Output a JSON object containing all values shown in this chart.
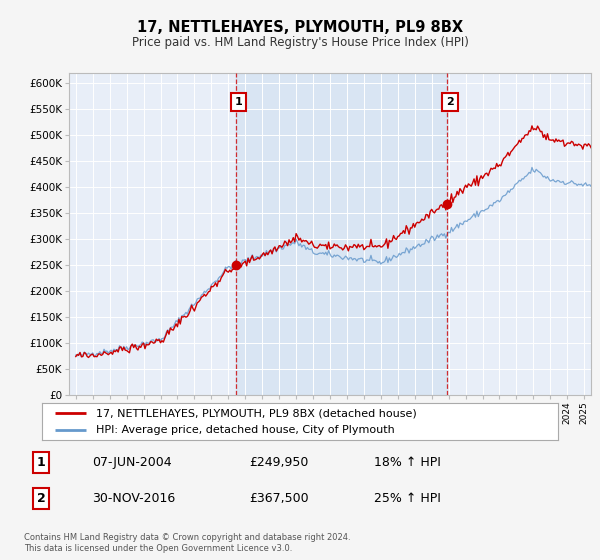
{
  "title": "17, NETTLEHAYES, PLYMOUTH, PL9 8BX",
  "subtitle": "Price paid vs. HM Land Registry's House Price Index (HPI)",
  "background_color": "#f5f5f5",
  "plot_bg_color": "#e8eef8",
  "highlight_bg_color": "#d0dff0",
  "ylabel_ticks": [
    "£0",
    "£50K",
    "£100K",
    "£150K",
    "£200K",
    "£250K",
    "£300K",
    "£350K",
    "£400K",
    "£450K",
    "£500K",
    "£550K",
    "£600K"
  ],
  "ytick_values": [
    0,
    50000,
    100000,
    150000,
    200000,
    250000,
    300000,
    350000,
    400000,
    450000,
    500000,
    550000,
    600000
  ],
  "ylim": [
    0,
    620000
  ],
  "xlim_start": 1994.6,
  "xlim_end": 2025.4,
  "sale1_x": 2004.44,
  "sale1_y": 249950,
  "sale1_label": "1",
  "sale1_date": "07-JUN-2004",
  "sale1_price": "£249,950",
  "sale1_hpi": "18% ↑ HPI",
  "sale2_x": 2016.92,
  "sale2_y": 367500,
  "sale2_label": "2",
  "sale2_date": "30-NOV-2016",
  "sale2_price": "£367,500",
  "sale2_hpi": "25% ↑ HPI",
  "legend_line1": "17, NETTLEHAYES, PLYMOUTH, PL9 8BX (detached house)",
  "legend_line2": "HPI: Average price, detached house, City of Plymouth",
  "footer": "Contains HM Land Registry data © Crown copyright and database right 2024.\nThis data is licensed under the Open Government Licence v3.0.",
  "red_color": "#cc0000",
  "blue_color": "#6699cc",
  "marker_box_color": "#cc0000",
  "grid_color": "#ffffff",
  "spine_color": "#bbbbbb"
}
